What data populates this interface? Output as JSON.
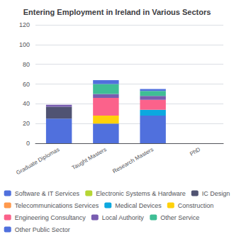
{
  "chart_data": {
    "type": "bar",
    "title": "Entering Employment in Ireland in Various Sectors",
    "categories": [
      "Graduate Diplomas",
      "Taught Masters",
      "Research Masters",
      "PhD"
    ],
    "series": [
      {
        "name": "Software & IT Services",
        "values": [
          25,
          20,
          28,
          0
        ]
      },
      {
        "name": "Electronic Systems & Hardware",
        "values": [
          0,
          0,
          0,
          0
        ]
      },
      {
        "name": "IC Design",
        "values": [
          12,
          0,
          0,
          0
        ]
      },
      {
        "name": "Telecommunications Services",
        "values": [
          0,
          0,
          0,
          0
        ]
      },
      {
        "name": "Medical Devices",
        "values": [
          0,
          0,
          6,
          0
        ]
      },
      {
        "name": "Construction",
        "values": [
          0,
          8,
          0,
          0
        ]
      },
      {
        "name": "Engineering Consultancy",
        "values": [
          0,
          18,
          10,
          0
        ]
      },
      {
        "name": "Local Authority",
        "values": [
          2,
          4,
          4,
          0
        ]
      },
      {
        "name": "Other Service",
        "values": [
          0,
          10,
          5,
          0
        ]
      },
      {
        "name": "Other Public Sector",
        "values": [
          0,
          4,
          2,
          0
        ]
      }
    ],
    "ylim": [
      0,
      120
    ],
    "yticks": [
      0,
      20,
      40,
      60,
      80,
      100,
      120
    ],
    "grid": true,
    "stacked": true,
    "legend": "bottom"
  }
}
